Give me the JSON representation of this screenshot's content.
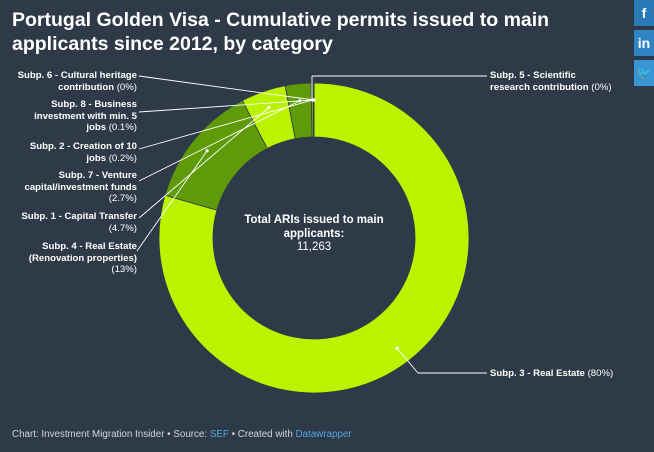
{
  "title": "Portugal Golden Visa - Cumulative permits issued to main applicants since 2012, by category",
  "center": {
    "title": "Total ARIs issued to main applicants:",
    "value": "11,263"
  },
  "footer": {
    "prefix": "Chart: Investment Migration Insider • Source: ",
    "source": "SEF",
    "middle": " • Created with ",
    "tool": "Datawrapper"
  },
  "share": {
    "facebook": "f",
    "linkedin": "in",
    "twitter": "🐦"
  },
  "colors": {
    "background": "#2f3a49",
    "segment_main": "#bbf200",
    "segment_alt": "#5e9a09",
    "segment_light": "#9dd604",
    "segment_dark": "#2d7a15"
  },
  "chart_data": {
    "type": "pie",
    "donut": true,
    "unit": "%",
    "slices": [
      {
        "name": "Subp. 3 - Real Estate",
        "value": 80,
        "label": "(80%)",
        "color": "#bbf200"
      },
      {
        "name": "Subp. 4 - Real Estate (Renovation properties)",
        "value": 13,
        "label": "(13%)",
        "color": "#5e9a09"
      },
      {
        "name": "Subp. 1 - Capital Transfer",
        "value": 4.7,
        "label": "(4.7%)",
        "color": "#bbf200"
      },
      {
        "name": "Subp. 7 - Venture capital/investment funds",
        "value": 2.7,
        "label": "(2.7%)",
        "color": "#5e9a09"
      },
      {
        "name": "Subp. 2 - Creation of 10 jobs",
        "value": 0.2,
        "label": "(0.2%)",
        "color": "#9dd604"
      },
      {
        "name": "Subp. 8 - Business investment with min. 5 jobs",
        "value": 0.1,
        "label": "(0.1%)",
        "color": "#2d7a15"
      },
      {
        "name": "Subp. 6 - Cultural heritage contribution",
        "value": 0,
        "label": "(0%)",
        "color": "#5e9a09"
      },
      {
        "name": "Subp. 5 - Scientific research contribution",
        "value": 0,
        "label": "(0%)",
        "color": "#9dd604"
      }
    ],
    "labels": {
      "s3": {
        "line1": "Subp. 3 - Real Estate",
        "pct": "(80%)"
      },
      "s5": {
        "line1": "Subp. 5 - Scientific",
        "line2": "research contribution",
        "pct": "(0%)"
      },
      "s6": {
        "line1": "Subp. 6 - Cultural heritage",
        "line2": "contribution",
        "pct": "(0%)"
      },
      "s8": {
        "line1": "Subp. 8 - Business",
        "line2": "investment with min. 5",
        "line3": "jobs",
        "pct": "(0.1%)"
      },
      "s2": {
        "line1": "Subp. 2 - Creation of 10",
        "line2": "jobs",
        "pct": "(0.2%)"
      },
      "s7": {
        "line1": "Subp. 7 - Venture",
        "line2": "capital/investment funds",
        "pct": "(2.7%)"
      },
      "s1": {
        "line1": "Subp. 1 - Capital Transfer",
        "pct": "(4.7%)"
      },
      "s4": {
        "line1": "Subp. 4 - Real Estate",
        "line2": "(Renovation properties)",
        "pct": "(13%)"
      }
    }
  }
}
